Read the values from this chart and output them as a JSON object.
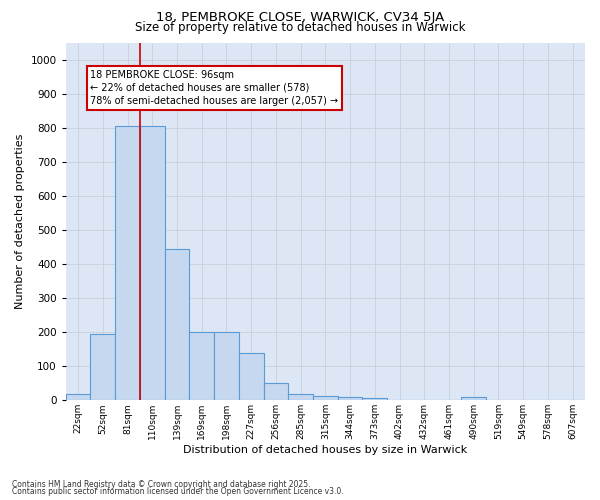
{
  "title_line1": "18, PEMBROKE CLOSE, WARWICK, CV34 5JA",
  "title_line2": "Size of property relative to detached houses in Warwick",
  "xlabel": "Distribution of detached houses by size in Warwick",
  "ylabel": "Number of detached properties",
  "categories": [
    "22sqm",
    "52sqm",
    "81sqm",
    "110sqm",
    "139sqm",
    "169sqm",
    "198sqm",
    "227sqm",
    "256sqm",
    "285sqm",
    "315sqm",
    "344sqm",
    "373sqm",
    "402sqm",
    "432sqm",
    "461sqm",
    "490sqm",
    "519sqm",
    "549sqm",
    "578sqm",
    "607sqm"
  ],
  "values": [
    18,
    195,
    805,
    805,
    445,
    200,
    200,
    140,
    50,
    18,
    12,
    10,
    8,
    0,
    0,
    0,
    10,
    0,
    0,
    0,
    0
  ],
  "bar_color": "#c5d8f0",
  "bar_edge_color": "#5b9bd5",
  "vline_x": 2.5,
  "vline_color": "#cc0000",
  "annotation_text": "18 PEMBROKE CLOSE: 96sqm\n← 22% of detached houses are smaller (578)\n78% of semi-detached houses are larger (2,057) →",
  "annotation_box_color": "#ffffff",
  "annotation_box_edge": "#cc0000",
  "ylim": [
    0,
    1050
  ],
  "yticks": [
    0,
    100,
    200,
    300,
    400,
    500,
    600,
    700,
    800,
    900,
    1000
  ],
  "grid_color": "#c8d0dd",
  "bg_color": "#dce6f5",
  "footer_line1": "Contains HM Land Registry data © Crown copyright and database right 2025.",
  "footer_line2": "Contains public sector information licensed under the Open Government Licence v3.0.",
  "figsize": [
    6.0,
    5.0
  ],
  "dpi": 100
}
